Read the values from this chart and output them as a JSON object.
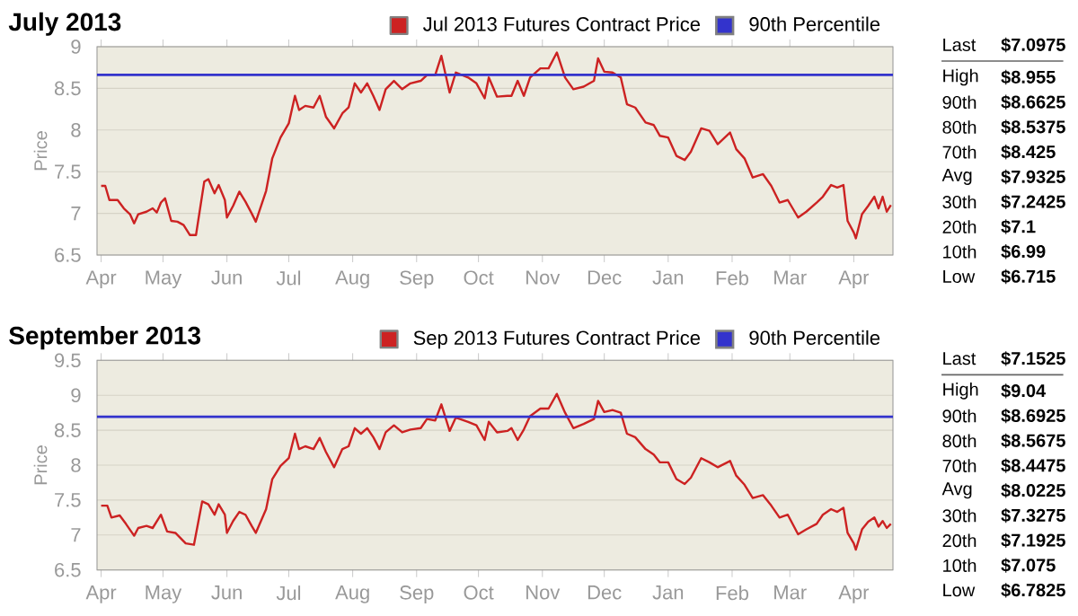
{
  "chart_data": [
    {
      "type": "line",
      "title": "July 2013",
      "ylabel": "Price",
      "xlim": [
        "2012-03-30",
        "2013-04-20"
      ],
      "ylim": [
        6.5,
        9
      ],
      "yticks": [
        6.5,
        7,
        7.5,
        8,
        8.5,
        9
      ],
      "xticks": [
        {
          "value": "2012-04-01",
          "label": "Apr"
        },
        {
          "value": "2012-05-01",
          "label": "May"
        },
        {
          "value": "2012-06-01",
          "label": "Jun"
        },
        {
          "value": "2012-07-01",
          "label": "Jul"
        },
        {
          "value": "2012-08-01",
          "label": "Aug"
        },
        {
          "value": "2012-09-01",
          "label": "Sep"
        },
        {
          "value": "2012-10-01",
          "label": "Oct"
        },
        {
          "value": "2012-11-01",
          "label": "Nov"
        },
        {
          "value": "2012-12-01",
          "label": "Dec"
        },
        {
          "value": "2013-01-01",
          "label": "Jan"
        },
        {
          "value": "2013-02-01",
          "label": "Feb"
        },
        {
          "value": "2013-03-01",
          "label": "Mar"
        },
        {
          "value": "2013-04-01",
          "label": "Apr"
        }
      ],
      "grid": "y",
      "legend": "top right",
      "x": [
        "2012-04-01",
        "2012-04-03",
        "2012-04-05",
        "2012-04-09",
        "2012-04-12",
        "2012-04-15",
        "2012-04-17",
        "2012-04-19",
        "2012-04-23",
        "2012-04-26",
        "2012-04-28",
        "2012-04-30",
        "2012-05-02",
        "2012-05-05",
        "2012-05-08",
        "2012-05-11",
        "2012-05-14",
        "2012-05-17",
        "2012-05-19",
        "2012-05-21",
        "2012-05-23",
        "2012-05-26",
        "2012-05-28",
        "2012-05-31",
        "2012-06-01",
        "2012-06-04",
        "2012-06-07",
        "2012-06-10",
        "2012-06-13",
        "2012-06-15",
        "2012-06-20",
        "2012-06-23",
        "2012-06-27",
        "2012-07-01",
        "2012-07-04",
        "2012-07-06",
        "2012-07-09",
        "2012-07-13",
        "2012-07-16",
        "2012-07-19",
        "2012-07-23",
        "2012-07-27",
        "2012-07-30",
        "2012-08-02",
        "2012-08-05",
        "2012-08-08",
        "2012-08-11",
        "2012-08-14",
        "2012-08-17",
        "2012-08-21",
        "2012-08-25",
        "2012-08-29",
        "2012-09-03",
        "2012-09-06",
        "2012-09-10",
        "2012-09-13",
        "2012-09-17",
        "2012-09-20",
        "2012-09-26",
        "2012-09-30",
        "2012-10-04",
        "2012-10-06",
        "2012-10-10",
        "2012-10-15",
        "2012-10-17",
        "2012-10-20",
        "2012-10-23",
        "2012-10-26",
        "2012-10-31",
        "2012-11-04",
        "2012-11-08",
        "2012-11-12",
        "2012-11-16",
        "2012-11-21",
        "2012-11-26",
        "2012-11-28",
        "2012-12-01",
        "2012-12-05",
        "2012-12-09",
        "2012-12-12",
        "2012-12-16",
        "2012-12-21",
        "2012-12-25",
        "2012-12-28",
        "2013-01-01",
        "2013-01-05",
        "2013-01-09",
        "2013-01-12",
        "2013-01-17",
        "2013-01-21",
        "2013-01-25",
        "2013-01-31",
        "2013-02-03",
        "2013-02-07",
        "2013-02-11",
        "2013-02-16",
        "2013-02-20",
        "2013-02-24",
        "2013-02-28",
        "2013-03-05",
        "2013-03-09",
        "2013-03-14",
        "2013-03-17",
        "2013-03-21",
        "2013-03-24",
        "2013-03-27",
        "2013-03-29",
        "2013-04-01",
        "2013-04-02",
        "2013-04-05",
        "2013-04-08",
        "2013-04-11",
        "2013-04-13",
        "2013-04-15",
        "2013-04-17",
        "2013-04-19"
      ],
      "series": [
        {
          "name": "Jul 2013 Futures Contract Price",
          "color": "#cc2222",
          "values": [
            7.33,
            7.33,
            7.16,
            7.16,
            7.06,
            6.99,
            6.88,
            6.99,
            7.02,
            7.06,
            7.01,
            7.13,
            7.18,
            6.91,
            6.9,
            6.86,
            6.74,
            6.74,
            7.06,
            7.38,
            7.41,
            7.24,
            7.34,
            7.16,
            6.95,
            7.09,
            7.26,
            7.14,
            7.0,
            6.9,
            7.27,
            7.66,
            7.91,
            8.08,
            8.41,
            8.24,
            8.29,
            8.27,
            8.41,
            8.16,
            8.02,
            8.2,
            8.27,
            8.56,
            8.45,
            8.56,
            8.41,
            8.24,
            8.49,
            8.59,
            8.49,
            8.56,
            8.59,
            8.66,
            8.66,
            8.89,
            8.45,
            8.69,
            8.63,
            8.56,
            8.38,
            8.63,
            8.4,
            8.41,
            8.41,
            8.59,
            8.41,
            8.63,
            8.74,
            8.74,
            8.93,
            8.63,
            8.49,
            8.52,
            8.59,
            8.86,
            8.7,
            8.69,
            8.63,
            8.31,
            8.27,
            8.09,
            8.06,
            7.93,
            7.91,
            7.69,
            7.64,
            7.74,
            8.02,
            7.99,
            7.83,
            7.97,
            7.77,
            7.66,
            7.43,
            7.47,
            7.33,
            7.13,
            7.16,
            6.95,
            7.02,
            7.13,
            7.2,
            7.34,
            7.31,
            7.34,
            6.91,
            6.77,
            6.7,
            6.99,
            7.09,
            7.2,
            7.06,
            7.2,
            7.02,
            7.1
          ]
        }
      ],
      "ref_lines": [
        {
          "axis": "y",
          "value": 8.6625,
          "label": "90th Percentile",
          "color": "#3333cc"
        }
      ],
      "annotations": [
        "Last",
        "$7.0975",
        "High",
        "$8.955",
        "90th",
        "$8.6625",
        "80th",
        "$8.5375",
        "70th",
        "$8.425",
        "Avg",
        "$7.9325",
        "30th",
        "$7.2425",
        "20th",
        "$7.1",
        "10th",
        "$6.99",
        "Low",
        "$6.715"
      ]
    },
    {
      "type": "line",
      "title": "September 2013",
      "ylabel": "Price",
      "xlim": [
        "2012-03-30",
        "2013-04-20"
      ],
      "ylim": [
        6.5,
        9.5
      ],
      "yticks": [
        6.5,
        7,
        7.5,
        8,
        8.5,
        9,
        9.5
      ],
      "xticks": [
        {
          "value": "2012-04-01",
          "label": "Apr"
        },
        {
          "value": "2012-05-01",
          "label": "May"
        },
        {
          "value": "2012-06-01",
          "label": "Jun"
        },
        {
          "value": "2012-07-01",
          "label": "Jul"
        },
        {
          "value": "2012-08-01",
          "label": "Aug"
        },
        {
          "value": "2012-09-01",
          "label": "Sep"
        },
        {
          "value": "2012-10-01",
          "label": "Oct"
        },
        {
          "value": "2012-11-01",
          "label": "Nov"
        },
        {
          "value": "2012-12-01",
          "label": "Dec"
        },
        {
          "value": "2013-01-01",
          "label": "Jan"
        },
        {
          "value": "2013-02-01",
          "label": "Feb"
        },
        {
          "value": "2013-03-01",
          "label": "Mar"
        },
        {
          "value": "2013-04-01",
          "label": "Apr"
        }
      ],
      "grid": "y",
      "legend": "top right",
      "x": [
        "2012-04-01",
        "2012-04-04",
        "2012-04-06",
        "2012-04-10",
        "2012-04-13",
        "2012-04-17",
        "2012-04-19",
        "2012-04-23",
        "2012-04-26",
        "2012-04-30",
        "2012-05-03",
        "2012-05-07",
        "2012-05-12",
        "2012-05-16",
        "2012-05-20",
        "2012-05-23",
        "2012-05-26",
        "2012-05-28",
        "2012-05-31",
        "2012-06-01",
        "2012-06-04",
        "2012-06-07",
        "2012-06-10",
        "2012-06-13",
        "2012-06-15",
        "2012-06-20",
        "2012-06-23",
        "2012-06-27",
        "2012-07-01",
        "2012-07-04",
        "2012-07-06",
        "2012-07-09",
        "2012-07-13",
        "2012-07-16",
        "2012-07-19",
        "2012-07-23",
        "2012-07-27",
        "2012-07-30",
        "2012-08-02",
        "2012-08-05",
        "2012-08-08",
        "2012-08-11",
        "2012-08-14",
        "2012-08-17",
        "2012-08-21",
        "2012-08-25",
        "2012-08-29",
        "2012-09-03",
        "2012-09-06",
        "2012-09-10",
        "2012-09-13",
        "2012-09-17",
        "2012-09-20",
        "2012-09-26",
        "2012-09-30",
        "2012-10-04",
        "2012-10-06",
        "2012-10-10",
        "2012-10-15",
        "2012-10-17",
        "2012-10-20",
        "2012-10-23",
        "2012-10-26",
        "2012-10-31",
        "2012-11-04",
        "2012-11-08",
        "2012-11-12",
        "2012-11-16",
        "2012-11-21",
        "2012-11-26",
        "2012-11-28",
        "2012-12-01",
        "2012-12-05",
        "2012-12-09",
        "2012-12-12",
        "2012-12-16",
        "2012-12-21",
        "2012-12-25",
        "2012-12-28",
        "2013-01-01",
        "2013-01-05",
        "2013-01-09",
        "2013-01-12",
        "2013-01-17",
        "2013-01-21",
        "2013-01-25",
        "2013-01-31",
        "2013-02-03",
        "2013-02-07",
        "2013-02-11",
        "2013-02-16",
        "2013-02-20",
        "2013-02-24",
        "2013-02-28",
        "2013-03-05",
        "2013-03-09",
        "2013-03-14",
        "2013-03-17",
        "2013-03-21",
        "2013-03-24",
        "2013-03-27",
        "2013-03-29",
        "2013-04-01",
        "2013-04-02",
        "2013-04-05",
        "2013-04-08",
        "2013-04-11",
        "2013-04-13",
        "2013-04-15",
        "2013-04-17",
        "2013-04-19"
      ],
      "series": [
        {
          "name": "Sep 2013 Futures Contract Price",
          "color": "#cc2222",
          "values": [
            7.42,
            7.42,
            7.25,
            7.28,
            7.16,
            6.99,
            7.1,
            7.13,
            7.1,
            7.29,
            7.05,
            7.03,
            6.88,
            6.86,
            7.48,
            7.44,
            7.29,
            7.44,
            7.29,
            7.03,
            7.2,
            7.33,
            7.29,
            7.13,
            7.03,
            7.37,
            7.8,
            7.99,
            8.1,
            8.45,
            8.23,
            8.27,
            8.23,
            8.39,
            8.19,
            7.97,
            8.23,
            8.27,
            8.53,
            8.45,
            8.53,
            8.4,
            8.23,
            8.47,
            8.57,
            8.47,
            8.51,
            8.53,
            8.66,
            8.64,
            8.87,
            8.49,
            8.68,
            8.62,
            8.57,
            8.36,
            8.62,
            8.47,
            8.49,
            8.53,
            8.36,
            8.51,
            8.7,
            8.81,
            8.81,
            9.02,
            8.75,
            8.53,
            8.59,
            8.66,
            8.92,
            8.76,
            8.79,
            8.75,
            8.45,
            8.4,
            8.23,
            8.15,
            8.04,
            8.04,
            7.8,
            7.73,
            7.82,
            8.1,
            8.04,
            7.97,
            8.06,
            7.85,
            7.72,
            7.53,
            7.57,
            7.42,
            7.25,
            7.29,
            7.01,
            7.08,
            7.16,
            7.29,
            7.37,
            7.33,
            7.39,
            7.03,
            6.88,
            6.79,
            7.08,
            7.19,
            7.25,
            7.12,
            7.2,
            7.1,
            7.16
          ]
        }
      ],
      "ref_lines": [
        {
          "axis": "y",
          "value": 8.6925,
          "label": "90th Percentile",
          "color": "#3333cc"
        }
      ],
      "annotations": [
        "Last",
        "$7.1525",
        "High",
        "$9.04",
        "90th",
        "$8.6925",
        "80th",
        "$8.5675",
        "70th",
        "$8.4475",
        "Avg",
        "$8.0225",
        "30th",
        "$7.3275",
        "20th",
        "$7.1925",
        "10th",
        "$7.075",
        "Low",
        "$6.7825"
      ]
    }
  ]
}
